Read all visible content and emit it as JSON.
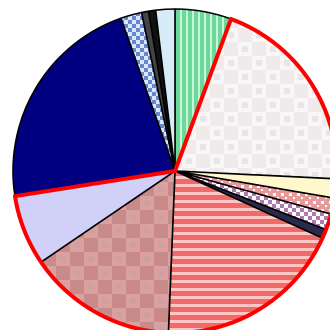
{
  "chart_data": {
    "type": "pie",
    "title": "",
    "start_angle_deg": 90,
    "direction": "clockwise",
    "legend": "none",
    "outline_color": "#000000",
    "highlight_color": "#ff0000",
    "highlighted_slices": [
      1,
      2,
      3,
      4,
      5,
      6,
      7,
      8
    ],
    "slices": [
      {
        "value": 5.6,
        "color": "#6cd99a",
        "pattern": "vertical-stripes",
        "alt_color": "#c8f5d8",
        "highlighted": false
      },
      {
        "value": 20.1,
        "color": "#f0eaea",
        "pattern": "soft-checker",
        "alt_color": "#ffffff",
        "highlighted": true
      },
      {
        "value": 1.9,
        "color": "#fff8cc",
        "pattern": "none",
        "alt_color": "#ffffff",
        "highlighted": true
      },
      {
        "value": 1.6,
        "color": "#e89a9a",
        "pattern": "dots",
        "alt_color": "#ffffff",
        "highlighted": true
      },
      {
        "value": 1.6,
        "color": "#b07ab0",
        "pattern": "checker",
        "alt_color": "#ffffff",
        "highlighted": true
      },
      {
        "value": 0.9,
        "color": "#2a2a4a",
        "pattern": "none",
        "alt_color": "#ffffff",
        "highlighted": true
      },
      {
        "value": 18.8,
        "color": "#f06a6a",
        "pattern": "horizontal-stripes",
        "alt_color": "#ffd0d0",
        "highlighted": true
      },
      {
        "value": 14.8,
        "color": "#c98a8a",
        "pattern": "soft-checker",
        "alt_color": "#e8b4b4",
        "highlighted": true
      },
      {
        "value": 7.0,
        "color": "#d0d0f8",
        "pattern": "none",
        "alt_color": "#ffffff",
        "highlighted": true
      },
      {
        "value": 22.0,
        "color": "#000080",
        "pattern": "none",
        "alt_color": "#ffffff",
        "highlighted": false
      },
      {
        "value": 2.1,
        "color": "#6688cc",
        "pattern": "checker",
        "alt_color": "#dde6ff",
        "highlighted": false
      },
      {
        "value": 0.7,
        "color": "#444444",
        "pattern": "none",
        "alt_color": "#ffffff",
        "highlighted": false
      },
      {
        "value": 0.7,
        "color": "#111111",
        "pattern": "none",
        "alt_color": "#ffffff",
        "highlighted": false
      },
      {
        "value": 1.9,
        "color": "#d8ecf8",
        "pattern": "none",
        "alt_color": "#ffffff",
        "highlighted": false
      }
    ]
  }
}
